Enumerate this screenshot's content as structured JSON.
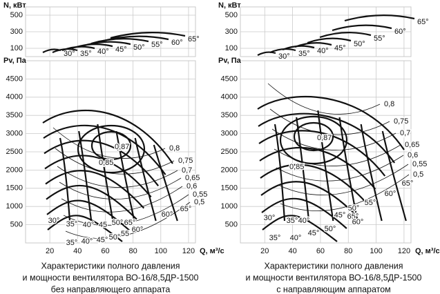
{
  "chart_data": [
    {
      "type": "fan-chart",
      "caption": [
        "Характеристики полного давления",
        "и мощности вентилятора ВО-16/8,5ДР-1500",
        "без направляющего аппарата"
      ],
      "xlabel": "Q, м³/с",
      "ylabel": "Pv, Па",
      "nlabel": "N, кВт",
      "xlim": [
        2.5,
        125
      ],
      "xticks": [
        20,
        40,
        60,
        80,
        100,
        120
      ],
      "ylim": [
        0,
        5000
      ],
      "yticks": [
        500,
        1000,
        1500,
        2000,
        2500,
        3000,
        3500,
        4000,
        4500
      ],
      "nlim": [
        0,
        600
      ],
      "nticks": [
        100,
        300,
        500
      ],
      "grid": true,
      "power_labels": [
        "30°",
        "35°",
        "40°",
        "45°",
        "50°",
        "55°",
        "60°",
        "65°"
      ],
      "efficiency_labels": [
        "0,87",
        "0,85",
        "0,8",
        "0,75",
        "0,7",
        "0,65",
        "0,6",
        "0,55",
        "0,5"
      ],
      "angle_labels": [
        "65°",
        "60°",
        "30°",
        "35°",
        "40°",
        "45",
        "50°",
        "65°",
        "35°",
        "40°",
        "45°",
        "50°",
        "55",
        "60°"
      ]
    },
    {
      "type": "fan-chart",
      "caption": [
        "Характеристики полного давления",
        "и мощности вентилятора ВО-16/8,5ДР-1500",
        "с направляющим аппаратом"
      ],
      "xlabel": "Q, м³/с",
      "ylabel": "Pv, Па",
      "nlabel": "N, кВт",
      "xlim": [
        2.5,
        125
      ],
      "xticks": [
        20,
        40,
        60,
        80,
        100,
        120
      ],
      "ylim": [
        0,
        5000
      ],
      "yticks": [
        500,
        1000,
        1500,
        2000,
        2500,
        3000,
        3500,
        4000,
        4500
      ],
      "nlim": [
        0,
        600
      ],
      "nticks": [
        100,
        300,
        500
      ],
      "grid": true,
      "power_labels": [
        "30°",
        "35°",
        "40°",
        "45°",
        "50°",
        "55°",
        "60°",
        "65°"
      ],
      "efficiency_labels": [
        "0,87",
        "0,85",
        "0,8",
        "0,75",
        "0,7",
        "0,65",
        "0,6",
        "0,55",
        "0,5"
      ],
      "angle_labels": [
        "65°",
        "60°",
        "55°",
        "50°",
        "45°",
        "30°",
        "35°",
        "40°",
        "65°",
        "60°",
        "35°",
        "40°",
        "45°",
        "50°"
      ]
    }
  ]
}
